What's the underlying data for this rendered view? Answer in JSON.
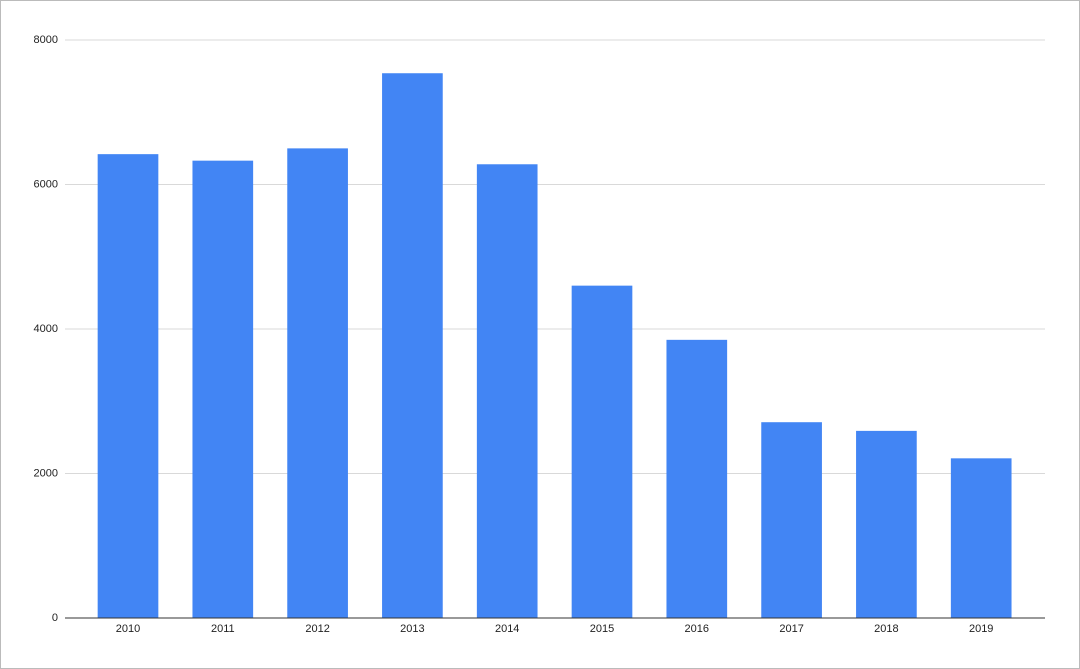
{
  "chart_data": {
    "type": "bar",
    "categories": [
      "2010",
      "2011",
      "2012",
      "2013",
      "2014",
      "2015",
      "2016",
      "2017",
      "2018",
      "2019"
    ],
    "values": [
      6420,
      6330,
      6500,
      7540,
      6280,
      4600,
      3850,
      2710,
      2590,
      2210
    ],
    "color": "#4285f4",
    "ylim": [
      0,
      8000
    ],
    "yticks": [
      0,
      2000,
      4000,
      6000,
      8000
    ],
    "grid": true
  }
}
